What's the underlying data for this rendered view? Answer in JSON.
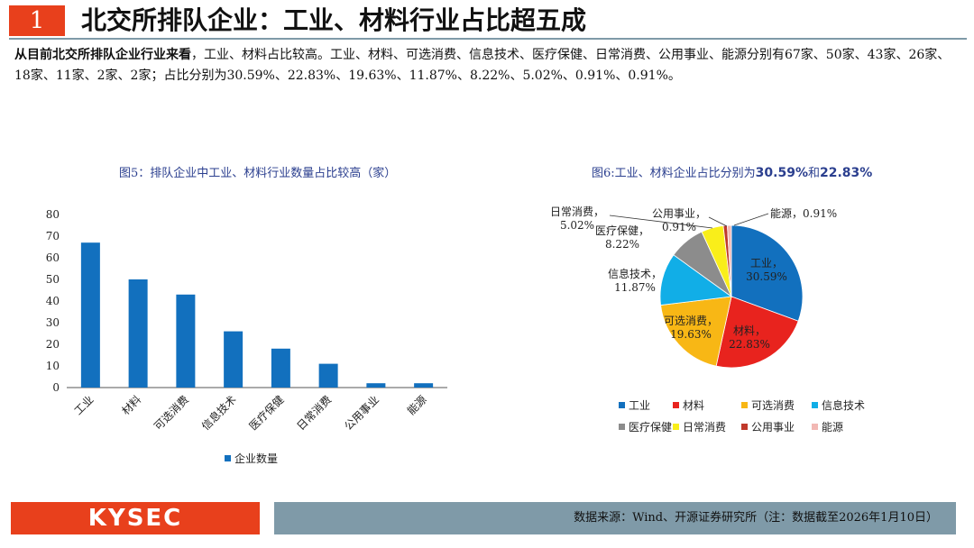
{
  "header": {
    "number": "1",
    "title": "北交所排队企业：工业、材料行业占比超五成"
  },
  "intro": {
    "lead": "从目前北交所排队企业行业来看",
    "body": "，工业、材料占比较高。工业、材料、可选消费、信息技术、医疗保健、日常消费、公用事业、能源分别有67家、50家、43家、26家、18家、11家、2家、2家；占比分别为30.59%、22.83%、19.63%、11.87%、8.22%、5.02%、0.91%、0.91%。"
  },
  "figure5": {
    "title": "图5：排队企业中工业、材料行业数量占比较高（家）"
  },
  "figure6": {
    "title_prefix": "图6:",
    "title_text": "工业、材料企业占比分别为",
    "title_v1": "30.59%",
    "title_mid": "和",
    "title_v2": "22.83%"
  },
  "footer": {
    "logo": "KYSEC",
    "source": "数据来源：Wind、开源证券研究所（注：数据截至2026年1月10日）"
  },
  "chart_data": [
    {
      "type": "bar",
      "title": "图5：排队企业中工业、材料行业数量占比较高（家）",
      "categories": [
        "工业",
        "材料",
        "可选消费",
        "信息技术",
        "医疗保健",
        "日常消费",
        "公用事业",
        "能源"
      ],
      "series": [
        {
          "name": "企业数量",
          "values": [
            67,
            50,
            43,
            26,
            18,
            11,
            2,
            2
          ],
          "color": "#1270be"
        }
      ],
      "ylim": [
        0,
        80
      ],
      "yticks": [
        0,
        10,
        20,
        30,
        40,
        50,
        60,
        70,
        80
      ],
      "legend": "bottom",
      "grid": false
    },
    {
      "type": "pie",
      "title": "图6:工业、材料企业占比分别为30.59%和22.83%",
      "slices": [
        {
          "label": "工业",
          "value": 30.59,
          "display": "30.59%",
          "color": "#1270be"
        },
        {
          "label": "材料",
          "value": 22.83,
          "display": "22.83%",
          "color": "#e8231e"
        },
        {
          "label": "可选消费",
          "value": 19.63,
          "display": "19.63%",
          "color": "#f8b715"
        },
        {
          "label": "信息技术",
          "value": 11.87,
          "display": "11.87%",
          "color": "#11aee7"
        },
        {
          "label": "医疗保健",
          "value": 8.22,
          "display": "8.22%",
          "color": "#8c8c8c"
        },
        {
          "label": "日常消费",
          "value": 5.02,
          "display": "5.02%",
          "color": "#f9ee1a"
        },
        {
          "label": "公用事业",
          "value": 0.91,
          "display": "0.91%",
          "color": "#c0392b"
        },
        {
          "label": "能源",
          "value": 0.91,
          "display": "0.91%",
          "color": "#f2b8b4"
        }
      ],
      "legend": "bottom"
    }
  ]
}
